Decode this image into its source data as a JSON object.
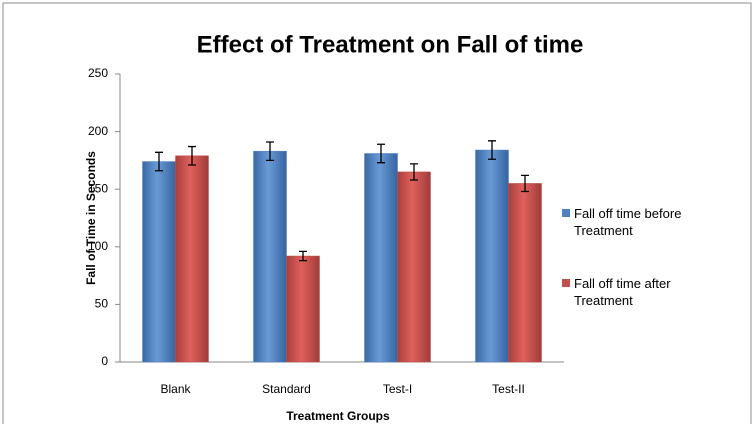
{
  "chart_data": {
    "type": "bar",
    "title": "Effect of Treatment on Fall of time",
    "x_label": "Treatment Groups",
    "y_label": "Fall of Time in Seconds",
    "categories": [
      "Blank",
      "Standard",
      "Test-I",
      "Test-II"
    ],
    "series": [
      {
        "name": "Fall off time before Treatment",
        "color": "#4f81bd",
        "values": [
          174,
          183,
          181,
          184
        ],
        "errors": [
          8,
          8,
          8,
          8
        ]
      },
      {
        "name": "Fall off time after Treatment",
        "color": "#c0504d",
        "values": [
          179,
          92,
          165,
          155
        ],
        "errors": [
          8,
          4,
          7,
          7
        ]
      }
    ],
    "ylim": [
      0,
      250
    ],
    "yticks": [
      0,
      50,
      100,
      150,
      200,
      250
    ],
    "grid": false,
    "legend": "right"
  }
}
